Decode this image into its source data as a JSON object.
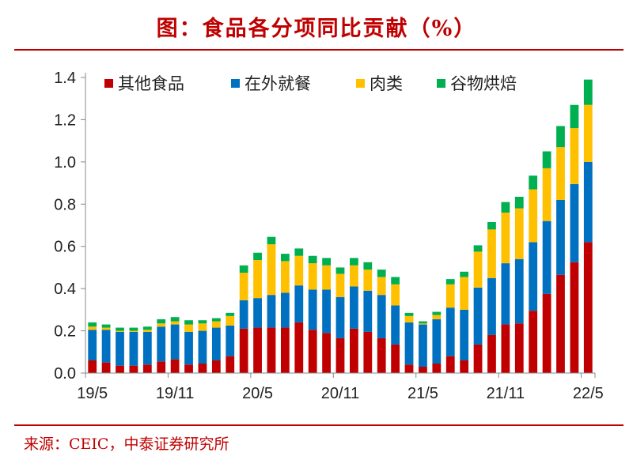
{
  "title": "图：食品各分项同比贡献（%）",
  "source": "来源：CEIC，中泰证券研究所",
  "chart_data": {
    "type": "bar",
    "stacked": true,
    "title": "图：食品各分项同比贡献（%）",
    "xlabel": "",
    "ylabel": "",
    "ylim": [
      0,
      1.4
    ],
    "yticks": [
      0.0,
      0.2,
      0.4,
      0.6,
      0.8,
      1.0,
      1.2,
      1.4
    ],
    "ytick_labels": [
      "0.0",
      "0.2",
      "0.4",
      "0.6",
      "0.8",
      "1.0",
      "1.2",
      "1.4"
    ],
    "legend_position": "top",
    "grid": false,
    "categories": [
      "19/5",
      "19/6",
      "19/7",
      "19/8",
      "19/9",
      "19/10",
      "19/11",
      "19/12",
      "20/1",
      "20/2",
      "20/3",
      "20/4",
      "20/5",
      "20/6",
      "20/7",
      "20/8",
      "20/9",
      "20/10",
      "20/11",
      "20/12",
      "21/1",
      "21/2",
      "21/3",
      "21/4",
      "21/5",
      "21/6",
      "21/7",
      "21/8",
      "21/9",
      "21/10",
      "21/11",
      "21/12",
      "22/1",
      "22/2",
      "22/3",
      "22/4",
      "22/5"
    ],
    "xtick_labels": [
      {
        "index": 0,
        "label": "19/5"
      },
      {
        "index": 6,
        "label": "19/11"
      },
      {
        "index": 12,
        "label": "20/5"
      },
      {
        "index": 18,
        "label": "20/11"
      },
      {
        "index": 24,
        "label": "21/5"
      },
      {
        "index": 30,
        "label": "21/11"
      },
      {
        "index": 36,
        "label": "22/5"
      }
    ],
    "series": [
      {
        "name": "其他食品",
        "color": "#c00000",
        "values": [
          0.06,
          0.05,
          0.035,
          0.035,
          0.04,
          0.055,
          0.065,
          0.04,
          0.045,
          0.06,
          0.08,
          0.21,
          0.215,
          0.215,
          0.215,
          0.24,
          0.205,
          0.19,
          0.165,
          0.21,
          0.195,
          0.165,
          0.135,
          0.04,
          0.03,
          0.045,
          0.08,
          0.06,
          0.135,
          0.18,
          0.23,
          0.235,
          0.295,
          0.375,
          0.465,
          0.525,
          0.62
        ]
      },
      {
        "name": "在外就餐",
        "color": "#0070c0",
        "values": [
          0.145,
          0.155,
          0.16,
          0.16,
          0.155,
          0.165,
          0.165,
          0.155,
          0.155,
          0.155,
          0.145,
          0.135,
          0.14,
          0.155,
          0.165,
          0.175,
          0.19,
          0.205,
          0.195,
          0.2,
          0.195,
          0.205,
          0.185,
          0.2,
          0.2,
          0.21,
          0.23,
          0.24,
          0.27,
          0.27,
          0.29,
          0.305,
          0.325,
          0.345,
          0.355,
          0.37,
          0.38
        ]
      },
      {
        "name": "肉类",
        "color": "#ffc000",
        "values": [
          0.015,
          0.01,
          0.005,
          0.005,
          0.01,
          0.015,
          0.015,
          0.035,
          0.035,
          0.03,
          0.045,
          0.13,
          0.18,
          0.24,
          0.15,
          0.14,
          0.125,
          0.115,
          0.11,
          0.1,
          0.1,
          0.085,
          0.1,
          0.03,
          0.005,
          0.02,
          0.11,
          0.155,
          0.17,
          0.23,
          0.24,
          0.24,
          0.25,
          0.25,
          0.25,
          0.265,
          0.27
        ]
      },
      {
        "name": "谷物烘焙",
        "color": "#00b050",
        "values": [
          0.02,
          0.015,
          0.015,
          0.015,
          0.015,
          0.02,
          0.02,
          0.02,
          0.015,
          0.015,
          0.015,
          0.035,
          0.035,
          0.035,
          0.035,
          0.035,
          0.035,
          0.035,
          0.03,
          0.035,
          0.035,
          0.035,
          0.035,
          0.015,
          0.01,
          0.015,
          0.025,
          0.025,
          0.03,
          0.035,
          0.05,
          0.055,
          0.065,
          0.08,
          0.1,
          0.11,
          0.12
        ]
      }
    ]
  }
}
